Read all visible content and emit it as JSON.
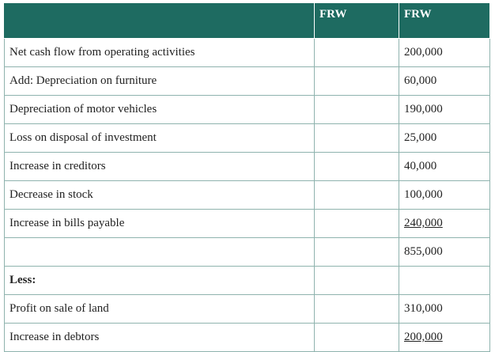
{
  "table": {
    "header": [
      "FRW",
      "FRW"
    ],
    "rows": [
      {
        "label": "Net cash flow from operating activities",
        "amount": "200,000"
      },
      {
        "label": "Add: Depreciation on furniture",
        "amount": "60,000"
      },
      {
        "label": "Depreciation of motor vehicles",
        "amount": "190,000"
      },
      {
        "label": "Loss on disposal of investment",
        "amount": "25,000"
      },
      {
        "label": "Increase in creditors",
        "amount": "40,000"
      },
      {
        "label": "Decrease in stock",
        "amount": "100,000"
      },
      {
        "label": "Increase in bills payable",
        "amount": "240,000",
        "underline": true
      },
      {
        "amount": "855,000"
      },
      {
        "label": "Less:",
        "bold": true
      },
      {
        "label": "Profit on sale of land",
        "amount": "310,000"
      },
      {
        "label": "Increase in debtors",
        "amount": "200,000",
        "underline": true
      }
    ]
  }
}
